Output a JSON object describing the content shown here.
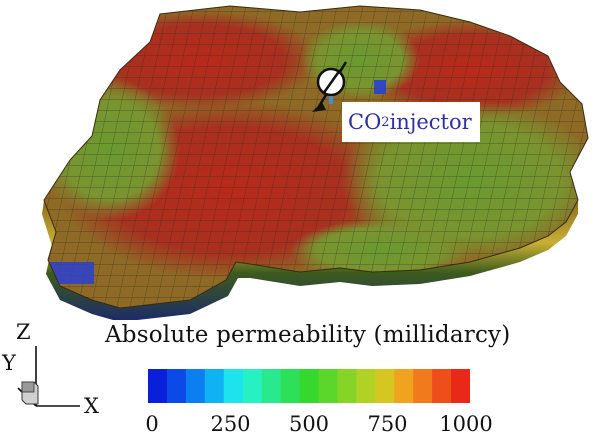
{
  "injector": {
    "label_main": "CO",
    "label_sub": "2",
    "label_tail": "injector"
  },
  "legend": {
    "title": "Absolute permeability (millidarcy)",
    "ticks": [
      "0",
      "250",
      "500",
      "750",
      "1000"
    ],
    "min": 0,
    "max": 1000,
    "colors": [
      "#0a1fd8",
      "#0b4ae6",
      "#0c7ff0",
      "#10b2f4",
      "#1ee3ee",
      "#27f0c2",
      "#2ae88e",
      "#2de05a",
      "#37d82d",
      "#5bd62a",
      "#86d427",
      "#b0d225",
      "#d6c622",
      "#efa31f",
      "#f07a1c",
      "#ee4f1a",
      "#e82917"
    ]
  },
  "axes": {
    "z": "Z",
    "y": "Y",
    "x": "X"
  },
  "colors": {
    "high_perm": "#b0281e",
    "mid_perm": "#7f9a2a",
    "low_perm": "#2a3fd0",
    "label_text": "#2e2ea8"
  }
}
